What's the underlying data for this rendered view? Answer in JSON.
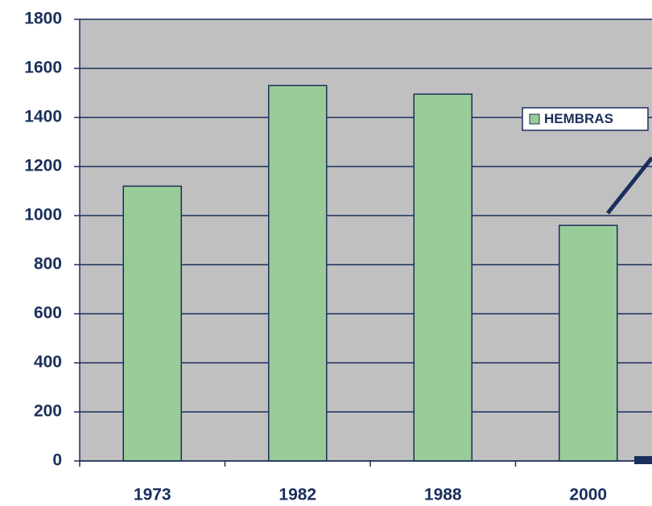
{
  "chart_data": {
    "type": "bar",
    "categories": [
      "1973",
      "1982",
      "1988",
      "2000"
    ],
    "series": [
      {
        "name": "HEMBRAS",
        "color": "#99cc99",
        "values": [
          1120,
          1530,
          1495,
          960
        ]
      }
    ],
    "ylim": [
      0,
      1800
    ],
    "yticks": [
      0,
      200,
      400,
      600,
      800,
      1000,
      1200,
      1400,
      1600,
      1800
    ],
    "grid": true,
    "legend": "upper right"
  }
}
